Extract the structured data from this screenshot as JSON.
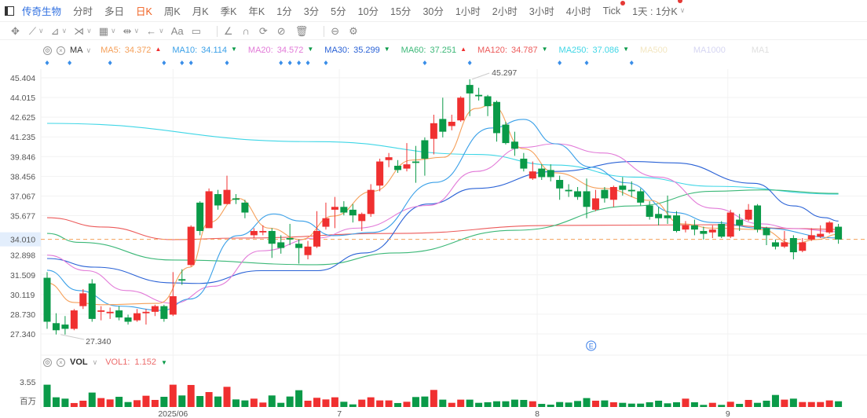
{
  "tabs": {
    "stock_name": "传奇生物",
    "items": [
      "分时",
      "多日",
      "日K",
      "周K",
      "月K",
      "季K",
      "年K",
      "1分",
      "3分",
      "5分",
      "10分",
      "15分",
      "30分",
      "1小时",
      "2小时",
      "3小时",
      "4小时",
      "Tick",
      "1天 : 1分K"
    ],
    "active": "日K",
    "dotted": [
      "Tick",
      "1天 : 1分K"
    ]
  },
  "toolbar": {
    "icons": [
      "move-icon",
      "line-tool-icon",
      "ruler-icon",
      "zigzag-icon",
      "measure-icon",
      "range-icon",
      "arrow-icon",
      "text-icon",
      "note-icon",
      "angle-icon",
      "magnet-icon",
      "sync-icon",
      "hide-icon",
      "trash-icon",
      "compare-icon",
      "settings-icon"
    ],
    "text_tool": "Aa"
  },
  "ma_legend": {
    "name": "MA",
    "items": [
      {
        "label": "MA5:",
        "value": "34.372",
        "trend": "up",
        "color": "#f5a05a"
      },
      {
        "label": "MA10:",
        "value": "34.114",
        "trend": "down",
        "color": "#3aa0e8"
      },
      {
        "label": "MA20:",
        "value": "34.572",
        "trend": "down",
        "color": "#e27ad8"
      },
      {
        "label": "MA30:",
        "value": "35.299",
        "trend": "down",
        "color": "#2a62d6"
      },
      {
        "label": "MA60:",
        "value": "37.251",
        "trend": "up",
        "color": "#3cb878"
      },
      {
        "label": "MA120:",
        "value": "34.787",
        "trend": "down",
        "color": "#ec5a5a"
      },
      {
        "label": "MA250:",
        "value": "37.086",
        "trend": "down",
        "color": "#3fd6e6"
      },
      {
        "label": "MA500",
        "value": "",
        "trend": "",
        "color": "#f3e6c0"
      },
      {
        "label": "MA1000",
        "value": "",
        "trend": "",
        "color": "#d6d6f2"
      },
      {
        "label": "MA1",
        "value": "",
        "trend": "",
        "color": "#e0e0e0"
      }
    ]
  },
  "vol_legend": {
    "name": "VOL",
    "label": "VOL1:",
    "value": "1.152",
    "trend": "down",
    "color": "#ec6a6a"
  },
  "colors": {
    "up": "#f03030",
    "down": "#0a9a48",
    "current_line": "#f5a05a",
    "current_label_bg": "#e3eefc",
    "current_label_text": "#2aa860"
  },
  "chart_data": {
    "type": "candlestick",
    "y_ticks": [
      "45.404",
      "44.015",
      "42.625",
      "41.235",
      "39.846",
      "38.456",
      "37.067",
      "35.677",
      "32.898",
      "31.509",
      "30.119",
      "28.730",
      "27.340"
    ],
    "ylim": [
      27.34,
      45.404
    ],
    "current_price": "34.010",
    "x_ticks": [
      {
        "label": "2025/06",
        "index": 14
      },
      {
        "label": "7",
        "index": 32.5
      },
      {
        "label": "8",
        "index": 54.5
      },
      {
        "label": "9",
        "index": 75.7
      }
    ],
    "high_label": {
      "text": "45.297",
      "index": 47
    },
    "low_label": {
      "text": "27.340",
      "index": 1.5
    },
    "event_markers": [
      0,
      2.5,
      7,
      13,
      15,
      16,
      20,
      26,
      27,
      28,
      29,
      31,
      42,
      47,
      57,
      60,
      65
    ],
    "earnings_marker": {
      "text": "E",
      "index": 60.5
    },
    "ohlc": [
      [
        31.3,
        31.7,
        27.7,
        28.2
      ],
      [
        28.1,
        28.8,
        27.3,
        27.6
      ],
      [
        28.0,
        28.6,
        27.3,
        27.7
      ],
      [
        27.7,
        29.1,
        27.6,
        29.0
      ],
      [
        29.3,
        30.5,
        29.1,
        30.2
      ],
      [
        30.9,
        31.2,
        28.2,
        28.4
      ],
      [
        28.9,
        29.3,
        28.3,
        29.0
      ],
      [
        28.8,
        29.2,
        28.4,
        28.9
      ],
      [
        29.0,
        29.3,
        28.3,
        28.5
      ],
      [
        28.5,
        28.7,
        28.0,
        28.2
      ],
      [
        28.3,
        29.1,
        28.2,
        28.8
      ],
      [
        28.8,
        29.1,
        28.0,
        28.9
      ],
      [
        28.9,
        29.4,
        28.6,
        29.3
      ],
      [
        29.3,
        29.4,
        28.2,
        28.4
      ],
      [
        28.7,
        31.7,
        28.6,
        30.0
      ],
      [
        31.2,
        31.9,
        30.8,
        31.1
      ],
      [
        32.2,
        35.0,
        32.1,
        34.9
      ],
      [
        36.6,
        36.7,
        34.3,
        34.6
      ],
      [
        34.8,
        37.6,
        34.8,
        37.4
      ],
      [
        37.2,
        37.5,
        36.1,
        36.4
      ],
      [
        36.5,
        38.5,
        36.5,
        37.5
      ],
      [
        36.9,
        37.2,
        36.5,
        36.8
      ],
      [
        36.6,
        36.8,
        35.5,
        35.9
      ],
      [
        34.3,
        34.8,
        34.1,
        34.6
      ],
      [
        34.5,
        35.0,
        34.3,
        34.6
      ],
      [
        34.6,
        34.8,
        32.7,
        33.7
      ],
      [
        33.8,
        34.3,
        33.0,
        33.4
      ],
      [
        34.1,
        35.1,
        33.6,
        34.0
      ],
      [
        33.7,
        34.0,
        32.3,
        33.4
      ],
      [
        32.9,
        33.9,
        32.6,
        33.5
      ],
      [
        33.5,
        36.0,
        33.4,
        34.6
      ],
      [
        34.9,
        36.6,
        34.7,
        35.5
      ],
      [
        36.1,
        37.0,
        34.8,
        36.3
      ],
      [
        36.3,
        36.7,
        35.7,
        35.9
      ],
      [
        36.1,
        36.5,
        35.2,
        35.7
      ],
      [
        35.3,
        35.9,
        34.6,
        35.8
      ],
      [
        35.8,
        37.9,
        35.6,
        37.5
      ],
      [
        37.8,
        39.7,
        37.4,
        39.5
      ],
      [
        39.6,
        40.1,
        39.1,
        39.8
      ],
      [
        39.2,
        39.6,
        38.7,
        38.9
      ],
      [
        39.0,
        40.8,
        38.8,
        39.3
      ],
      [
        39.5,
        40.6,
        38.0,
        39.4
      ],
      [
        41.0,
        41.2,
        38.5,
        39.7
      ],
      [
        41.1,
        42.8,
        40.0,
        42.2
      ],
      [
        42.5,
        44.0,
        41.2,
        41.6
      ],
      [
        42.0,
        42.8,
        41.7,
        42.3
      ],
      [
        42.4,
        44.1,
        42.3,
        44.0
      ],
      [
        44.9,
        45.3,
        42.7,
        44.3
      ],
      [
        44.2,
        44.7,
        43.8,
        44.1
      ],
      [
        44.1,
        44.2,
        42.7,
        43.4
      ],
      [
        43.7,
        43.8,
        40.9,
        41.5
      ],
      [
        42.1,
        42.3,
        40.7,
        40.8
      ],
      [
        40.9,
        41.6,
        39.9,
        40.4
      ],
      [
        39.7,
        40.1,
        38.8,
        39.0
      ],
      [
        38.3,
        39.5,
        38.2,
        38.8
      ],
      [
        39.0,
        39.3,
        38.2,
        38.4
      ],
      [
        38.9,
        39.3,
        38.1,
        38.4
      ],
      [
        38.2,
        38.5,
        36.8,
        37.6
      ],
      [
        37.5,
        37.9,
        37.0,
        37.4
      ],
      [
        37.4,
        37.7,
        36.8,
        37.0
      ],
      [
        37.4,
        38.3,
        35.5,
        36.3
      ],
      [
        36.1,
        37.5,
        36.0,
        36.9
      ],
      [
        37.5,
        37.7,
        36.6,
        36.9
      ],
      [
        36.8,
        37.8,
        36.3,
        37.7
      ],
      [
        37.8,
        38.4,
        37.1,
        37.5
      ],
      [
        37.5,
        38.1,
        37.0,
        37.4
      ],
      [
        37.4,
        37.6,
        36.4,
        36.6
      ],
      [
        36.4,
        36.7,
        35.4,
        35.6
      ],
      [
        35.8,
        36.3,
        35.0,
        35.5
      ],
      [
        35.7,
        37.1,
        35.1,
        35.5
      ],
      [
        35.7,
        36.0,
        34.5,
        34.6
      ],
      [
        34.7,
        35.3,
        34.5,
        35.0
      ],
      [
        35.0,
        35.4,
        34.3,
        34.7
      ],
      [
        34.6,
        34.9,
        34.0,
        34.4
      ],
      [
        34.5,
        35.0,
        34.1,
        34.7
      ],
      [
        35.1,
        35.3,
        34.1,
        34.2
      ],
      [
        34.2,
        36.1,
        34.1,
        35.9
      ],
      [
        35.4,
        35.8,
        34.6,
        35.0
      ],
      [
        35.4,
        36.5,
        35.3,
        36.1
      ],
      [
        36.4,
        36.5,
        34.5,
        34.7
      ],
      [
        34.8,
        34.9,
        33.6,
        34.3
      ],
      [
        33.8,
        34.0,
        33.3,
        33.5
      ],
      [
        33.5,
        34.6,
        33.4,
        33.8
      ],
      [
        34.1,
        34.3,
        32.6,
        33.1
      ],
      [
        33.2,
        34.1,
        33.1,
        33.8
      ],
      [
        34.0,
        34.8,
        33.9,
        34.3
      ],
      [
        34.2,
        35.0,
        34.1,
        34.4
      ],
      [
        34.5,
        35.3,
        34.4,
        35.2
      ],
      [
        34.9,
        35.1,
        33.7,
        34.0
      ]
    ],
    "volume_unit": "百万",
    "volume_tick": "3.55",
    "volume_max": 3.55,
    "volume": [
      3.15,
      1.37,
      1.18,
      0.56,
      0.89,
      2.04,
      1.26,
      1.07,
      1.44,
      0.7,
      0.96,
      1.59,
      1.0,
      1.44,
      3.15,
      1.63,
      3.11,
      1.55,
      2.11,
      1.48,
      2.85,
      1.07,
      0.93,
      1.18,
      0.63,
      1.63,
      0.59,
      1.48,
      2.37,
      0.89,
      1.3,
      1.07,
      1.37,
      0.74,
      0.37,
      1.04,
      1.37,
      0.93,
      0.93,
      0.56,
      0.74,
      1.41,
      1.48,
      2.41,
      1.04,
      0.59,
      1.04,
      1.04,
      0.59,
      0.67,
      0.81,
      0.81,
      1.04,
      1.0,
      0.81,
      0.44,
      0.33,
      0.7,
      0.63,
      0.85,
      1.26,
      0.89,
      0.93,
      0.67,
      0.59,
      0.48,
      0.48,
      0.67,
      0.89,
      0.52,
      0.67,
      1.18,
      0.67,
      0.3,
      0.59,
      0.3,
      0.74,
      0.44,
      1.0,
      0.59,
      0.89,
      1.7,
      1.04,
      1.18,
      0.7,
      0.7,
      0.7,
      0.93,
      0.81
    ],
    "ma_lines": [
      {
        "name": "MA250",
        "color": "#3fd6e6",
        "points": [
          [
            0,
            42.19
          ],
          [
            30,
            40.9
          ],
          [
            47.7,
            40.0
          ],
          [
            56.5,
            39.25
          ],
          [
            65.3,
            38.4
          ],
          [
            74.1,
            37.75
          ],
          [
            88,
            37.2
          ]
        ]
      },
      {
        "name": "MA120",
        "color": "#ec5a5a",
        "points": [
          [
            0,
            35.54
          ],
          [
            6.2,
            34.88
          ],
          [
            14,
            33.99
          ],
          [
            21.2,
            34.1
          ],
          [
            38.8,
            34.43
          ],
          [
            56.5,
            34.99
          ],
          [
            74.1,
            35.04
          ],
          [
            83,
            34.77
          ],
          [
            88,
            34.71
          ]
        ]
      },
      {
        "name": "MA60",
        "color": "#3cb878",
        "points": [
          [
            0,
            34.43
          ],
          [
            3.5,
            33.8
          ],
          [
            14,
            32.55
          ],
          [
            30,
            32.22
          ],
          [
            38.8,
            33.05
          ],
          [
            52.1,
            34.65
          ],
          [
            65.3,
            36.37
          ],
          [
            74.1,
            37.4
          ],
          [
            79.4,
            37.5
          ],
          [
            88,
            37.25
          ]
        ]
      },
      {
        "name": "MA30",
        "color": "#2a62d6",
        "points": [
          [
            0,
            32.66
          ],
          [
            5.3,
            32.05
          ],
          [
            14,
            30.94
          ],
          [
            16.8,
            30.9
          ],
          [
            23.8,
            31.8
          ],
          [
            30,
            31.8
          ],
          [
            35.3,
            33.05
          ],
          [
            42.4,
            36.5
          ],
          [
            47.7,
            37.6
          ],
          [
            56.5,
            38.8
          ],
          [
            65.3,
            39.5
          ],
          [
            69.7,
            39.4
          ],
          [
            78.6,
            37.96
          ],
          [
            83,
            36.37
          ],
          [
            86.5,
            35.54
          ],
          [
            88,
            35.3
          ]
        ]
      },
      {
        "name": "MA20",
        "color": "#e27ad8",
        "points": [
          [
            0,
            32.9
          ],
          [
            4.4,
            31.8
          ],
          [
            8.8,
            30.4
          ],
          [
            14,
            29.5
          ],
          [
            18.5,
            30.7
          ],
          [
            23.8,
            33.2
          ],
          [
            30,
            34.1
          ],
          [
            34.4,
            34.8
          ],
          [
            42.4,
            36.4
          ],
          [
            47.7,
            38.8
          ],
          [
            53,
            40.5
          ],
          [
            56.5,
            40.75
          ],
          [
            61.8,
            40.1
          ],
          [
            68,
            38.4
          ],
          [
            74.1,
            36.2
          ],
          [
            79.4,
            35.1
          ],
          [
            83,
            34.77
          ],
          [
            88,
            34.55
          ]
        ]
      },
      {
        "name": "MA10",
        "color": "#3aa0e8",
        "points": [
          [
            0,
            31.83
          ],
          [
            3.5,
            30.4
          ],
          [
            8,
            29.3
          ],
          [
            12.8,
            29.0
          ],
          [
            15.9,
            29.8
          ],
          [
            21.2,
            34.27
          ],
          [
            25.2,
            35.8
          ],
          [
            28.2,
            35.3
          ],
          [
            31.8,
            34.27
          ],
          [
            36.2,
            34.5
          ],
          [
            43.2,
            38.03
          ],
          [
            49.4,
            41.86
          ],
          [
            53,
            42.47
          ],
          [
            56.5,
            40.75
          ],
          [
            60.5,
            39.1
          ],
          [
            64.4,
            38.0
          ],
          [
            69.7,
            35.9
          ],
          [
            74.1,
            35.2
          ],
          [
            79.4,
            34.8
          ],
          [
            88,
            34.11
          ]
        ]
      },
      {
        "name": "MA5",
        "color": "#f5a05a",
        "points": [
          [
            0,
            30.94
          ],
          [
            3,
            29.56
          ],
          [
            6.2,
            29.4
          ],
          [
            12.4,
            29.5
          ],
          [
            15.9,
            32.05
          ],
          [
            18,
            35.2
          ],
          [
            21.2,
            36.9
          ],
          [
            24.7,
            34.8
          ],
          [
            28.2,
            34.0
          ],
          [
            31.8,
            35.65
          ],
          [
            36.2,
            37.4
          ],
          [
            40.6,
            39.6
          ],
          [
            44.1,
            39.8
          ],
          [
            47.7,
            43.24
          ],
          [
            49.4,
            43.5
          ],
          [
            53,
            40.4
          ],
          [
            56.5,
            38.7
          ],
          [
            61.8,
            37.6
          ],
          [
            67.1,
            36.76
          ],
          [
            70.6,
            35.1
          ],
          [
            74.1,
            34.8
          ],
          [
            79.4,
            34.7
          ],
          [
            83,
            33.7
          ],
          [
            85.6,
            34.0
          ],
          [
            88,
            34.37
          ]
        ]
      }
    ]
  }
}
